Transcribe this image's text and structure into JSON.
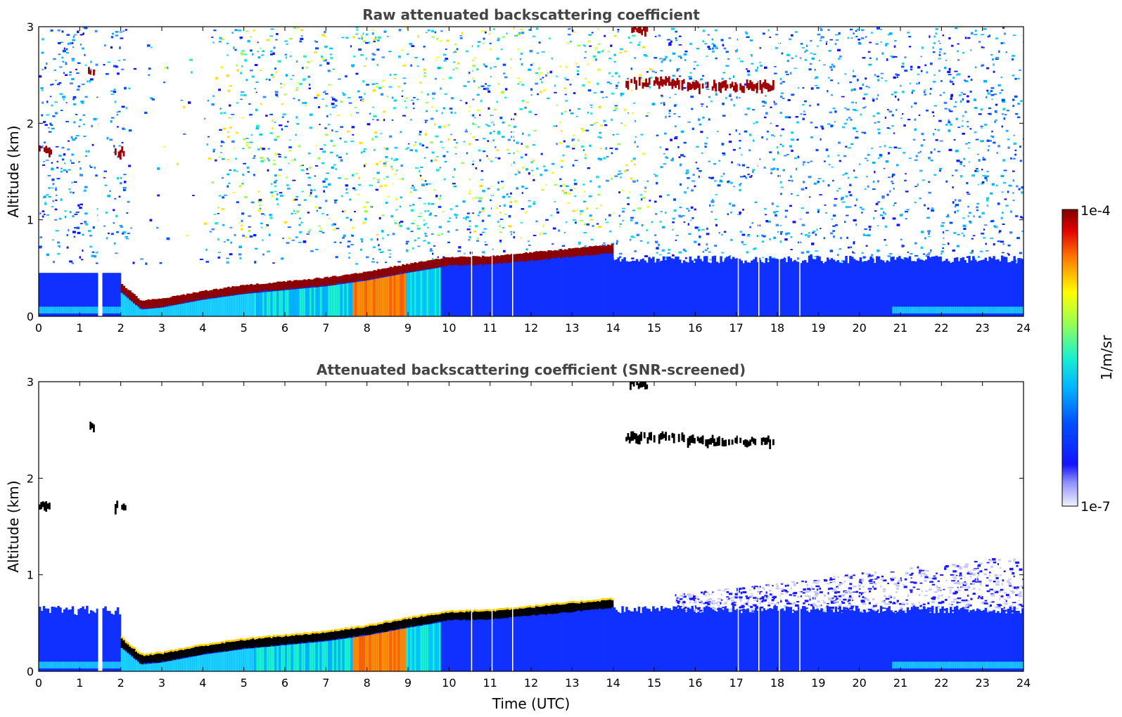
{
  "chart_data": [
    {
      "type": "heatmap",
      "title": "Raw attenuated backscattering coefficient",
      "ylabel": "Altitude (km)",
      "xlabel": "",
      "xlim": [
        0,
        24
      ],
      "ylim": [
        0,
        3
      ],
      "x_ticks": [
        "0",
        "1",
        "2",
        "3",
        "4",
        "5",
        "6",
        "7",
        "8",
        "9",
        "10",
        "11",
        "12",
        "13",
        "14",
        "15",
        "16",
        "17",
        "18",
        "19",
        "20",
        "21",
        "22",
        "23",
        "24"
      ],
      "y_ticks": [
        "0",
        "1",
        "2",
        "3"
      ],
      "layer_top_km": [
        [
          2.0,
          0.3
        ],
        [
          2.5,
          0.12
        ],
        [
          3.0,
          0.14
        ],
        [
          3.5,
          0.18
        ],
        [
          4.0,
          0.22
        ],
        [
          5.0,
          0.28
        ],
        [
          6.0,
          0.32
        ],
        [
          7.0,
          0.36
        ],
        [
          8.0,
          0.42
        ],
        [
          9.0,
          0.5
        ],
        [
          10.0,
          0.57
        ],
        [
          11.0,
          0.58
        ],
        [
          12.0,
          0.62
        ],
        [
          13.0,
          0.66
        ],
        [
          14.0,
          0.7
        ]
      ],
      "clouds": [
        {
          "t0": 0.0,
          "t1": 0.3,
          "z": 1.72
        },
        {
          "t0": 1.2,
          "t1": 1.4,
          "z": 2.52
        },
        {
          "t0": 1.85,
          "t1": 2.1,
          "z": 1.7
        },
        {
          "t0": 14.3,
          "t1": 15.7,
          "z": 2.42
        },
        {
          "t0": 15.8,
          "t1": 17.9,
          "z": 2.38
        },
        {
          "t0": 14.4,
          "t1": 14.8,
          "z": 2.97
        }
      ],
      "missing_profiles_utc": [
        1.5,
        10.55,
        11.05,
        11.55,
        17.05,
        17.55,
        18.05,
        18.55
      ]
    },
    {
      "type": "heatmap",
      "title": "Attenuated backscattering coefficient (SNR-screened)",
      "ylabel": "Altitude (km)",
      "xlabel": "Time (UTC)",
      "xlim": [
        0,
        24
      ],
      "ylim": [
        0,
        3
      ],
      "x_ticks": [
        "0",
        "1",
        "2",
        "3",
        "4",
        "5",
        "6",
        "7",
        "8",
        "9",
        "10",
        "11",
        "12",
        "13",
        "14",
        "15",
        "16",
        "17",
        "18",
        "19",
        "20",
        "21",
        "22",
        "23",
        "24"
      ],
      "y_ticks": [
        "0",
        "1",
        "2",
        "3"
      ]
    }
  ],
  "colorbar": {
    "label": "1/m/sr",
    "max_label": "1e-4",
    "min_label": "1e-7",
    "scale": "log",
    "colormap": "jet-white"
  }
}
